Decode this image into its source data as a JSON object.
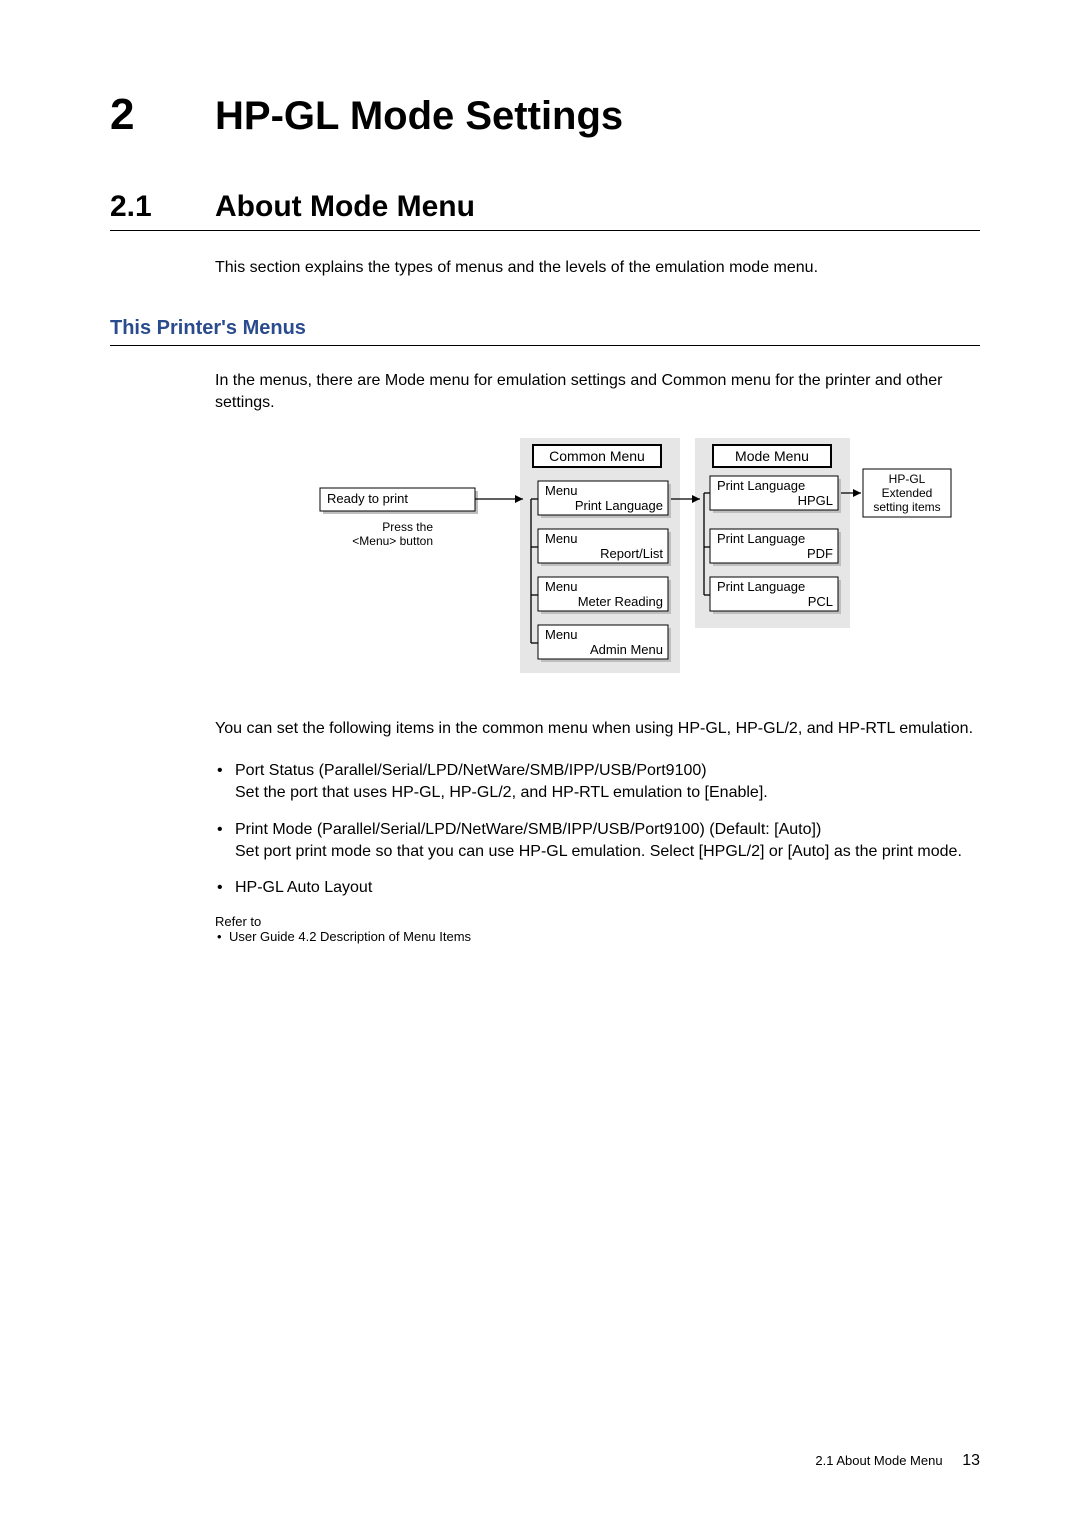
{
  "chapter": {
    "number": "2",
    "title": "HP-GL Mode Settings"
  },
  "section": {
    "number": "2.1",
    "title": "About Mode Menu"
  },
  "intro": "This section explains the types of menus and the levels of the emulation mode menu.",
  "subsection_title": "This Printer's Menus",
  "subsection_para": "In the menus, there are Mode menu for emulation settings and Common menu for the printer and other settings.",
  "diagram": {
    "bg_color": "#e6e6e6",
    "node_fill": "#ffffff",
    "node_stroke": "#000000",
    "shadow_fill": "#bfbfbf",
    "header_common": "Common Menu",
    "header_mode": "Mode Menu",
    "ready": "Ready to print",
    "press_l1": "Press the",
    "press_l2": "<Menu> button",
    "common_items": [
      {
        "l1": "Menu",
        "l2": "Print Language"
      },
      {
        "l1": "Menu",
        "l2": "Report/List"
      },
      {
        "l1": "Menu",
        "l2": "Meter Reading"
      },
      {
        "l1": "Menu",
        "l2": "Admin Menu"
      }
    ],
    "mode_items": [
      {
        "l1": "Print Language",
        "l2": "HPGL"
      },
      {
        "l1": "Print Language",
        "l2": "PDF"
      },
      {
        "l1": "Print Language",
        "l2": "PCL"
      }
    ],
    "extended": {
      "l1": "HP-GL",
      "l2": "Extended",
      "l3": "setting items"
    }
  },
  "after_diagram_para": "You can set the following items in the common menu when using HP-GL, HP-GL/2, and HP-RTL emulation.",
  "bullets": [
    "Port Status (Parallel/Serial/LPD/NetWare/SMB/IPP/USB/Port9100)\nSet the port that uses HP-GL, HP-GL/2, and HP-RTL emulation to [Enable].",
    "Print Mode (Parallel/Serial/LPD/NetWare/SMB/IPP/USB/Port9100) (Default: [Auto])\nSet port print mode so that you can use HP-GL emulation. Select [HPGL/2] or [Auto] as the print mode.",
    "HP-GL Auto Layout"
  ],
  "refer_to_label": "Refer to",
  "refer_items": [
    "User Guide 4.2 Description of Menu Items"
  ],
  "footer": {
    "text": "2.1 About Mode Menu",
    "page": "13"
  }
}
